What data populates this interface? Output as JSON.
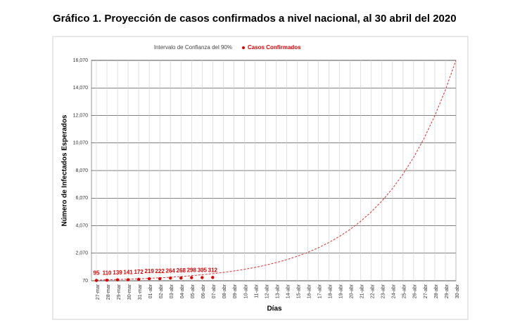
{
  "chart_data": {
    "type": "line",
    "title": "Gráfico 1. Proyección de casos confirmados a nivel nacional, al 30 abril del 2020",
    "x_label": "Días",
    "y_label": "Número de Infectados Esperados",
    "categories": [
      "27-mar",
      "28-mar",
      "29-mar",
      "30-mar",
      "31-mar",
      "01-abr",
      "02-abr",
      "03-abr",
      "04-abr",
      "05-abr",
      "06-abr",
      "07-abr",
      "08-abr",
      "09-abr",
      "10-abr",
      "11-abr",
      "12-abr",
      "13-abr",
      "14-abr",
      "15-abr",
      "16-abr",
      "17-abr",
      "18-abr",
      "19-abr",
      "20-abr",
      "21-abr",
      "22-abr",
      "23-abr",
      "24-abr",
      "25-abr",
      "26-abr",
      "27-abr",
      "28-abr",
      "29-abr",
      "30-abr"
    ],
    "series": [
      {
        "name": "Intervalo de Confianza del 90%",
        "color": "#e03030",
        "dashed": true,
        "values": [
          120,
          138,
          160,
          184,
          213,
          246,
          284,
          328,
          379,
          438,
          506,
          584,
          675,
          779,
          900,
          1040,
          1201,
          1387,
          1602,
          1850,
          2137,
          2468,
          2851,
          3293,
          3803,
          4392,
          5073,
          5860,
          6768,
          7817,
          9029,
          10429,
          12046,
          13913,
          16070
        ]
      },
      {
        "name": "Casos Confirmados",
        "color": "#e00000",
        "markers": true,
        "data_labels": true,
        "values": [
          95,
          110,
          139,
          141,
          172,
          219,
          222,
          264,
          268,
          298,
          305,
          312,
          null,
          null,
          null,
          null,
          null,
          null,
          null,
          null,
          null,
          null,
          null,
          null,
          null,
          null,
          null,
          null,
          null,
          null,
          null,
          null,
          null,
          null,
          null
        ]
      }
    ],
    "ylim": [
      70,
      16070
    ],
    "yticks": [
      70,
      {
        "value": 2070,
        "label": "2,070"
      },
      {
        "value": 4070,
        "label": "4,070"
      },
      {
        "value": 6070,
        "label": "6,070"
      },
      {
        "value": 8070,
        "label": "8,070"
      },
      {
        "value": 10070,
        "label": "10,070"
      },
      {
        "value": 12070,
        "label": "12,070"
      },
      {
        "value": 14070,
        "label": "14,070"
      },
      {
        "value": 16070,
        "label": "16,070"
      }
    ],
    "grid": true
  }
}
